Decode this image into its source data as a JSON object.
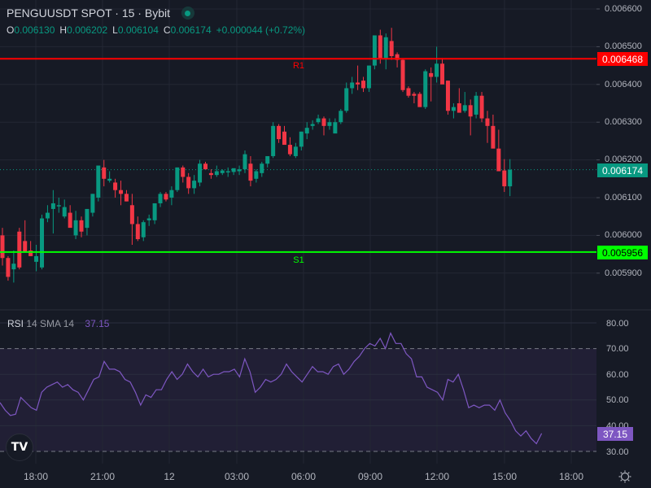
{
  "header": {
    "title": "PENGUUSDT SPOT · 15 · Bybit",
    "ohlc": {
      "o_label": "O",
      "o": "0.006130",
      "h_label": "H",
      "h": "0.006202",
      "l_label": "L",
      "l": "0.006104",
      "c_label": "C",
      "c": "0.006174",
      "change": "+0.000044 (+0.72%)"
    }
  },
  "price_axis": {
    "ticks": [
      "0.006600",
      "0.006500",
      "0.006400",
      "0.006300",
      "0.006200",
      "0.006100",
      "0.006000",
      "0.005900"
    ],
    "r1_tag": "0.006468",
    "last_tag": "0.006174",
    "s1_tag": "0.005956"
  },
  "levels": {
    "r1_label": "R1",
    "s1_label": "S1"
  },
  "rsi": {
    "name": "RSI",
    "params": "14 SMA 14",
    "value": "37.15",
    "ticks": [
      "80.00",
      "70.00",
      "60.00",
      "50.00",
      "40.00",
      "30.00"
    ],
    "tag": "37.15"
  },
  "time_axis": {
    "ticks": [
      "18:00",
      "21:00",
      "12",
      "03:00",
      "06:00",
      "09:00",
      "12:00",
      "15:00",
      "18:00"
    ]
  },
  "colors": {
    "up": "#089981",
    "down": "#f23645",
    "r1": "#ff0000",
    "s1": "#00ff00",
    "rsi": "#7e57c2",
    "background": "#161a25"
  },
  "chart_data": {
    "type": "candlestick",
    "title": "PENGUUSDT SPOT · 15 · Bybit",
    "interval": "15",
    "ylim": [
      0.00585,
      0.00662
    ],
    "levels": {
      "R1": 0.006468,
      "S1": 0.005956,
      "last": 0.006174
    },
    "x_ticks": [
      "18:00",
      "21:00",
      "12",
      "03:00",
      "06:00",
      "09:00",
      "12:00",
      "15:00",
      "18:00"
    ],
    "candles": [
      [
        0.006,
        0.00602,
        0.00592,
        0.00594
      ],
      [
        0.00594,
        0.005945,
        0.00588,
        0.00589
      ],
      [
        0.00591,
        0.00596,
        0.005875,
        0.005925
      ],
      [
        0.00601,
        0.00602,
        0.00591,
        0.005915
      ],
      [
        0.005985,
        0.00604,
        0.00596,
        0.005955
      ],
      [
        0.00596,
        0.005985,
        0.005945,
        0.005945
      ],
      [
        0.00593,
        0.005975,
        0.005905,
        0.005945
      ],
      [
        0.005915,
        0.006055,
        0.00591,
        0.006045
      ],
      [
        0.006045,
        0.00608,
        0.006035,
        0.00606
      ],
      [
        0.00607,
        0.00612,
        0.006005,
        0.006085
      ],
      [
        0.00608,
        0.0061,
        0.00606,
        0.00608
      ],
      [
        0.00605,
        0.006095,
        0.006045,
        0.006075
      ],
      [
        0.00606,
        0.00608,
        0.00604,
        0.00602
      ],
      [
        0.006,
        0.006065,
        0.00599,
        0.00604
      ],
      [
        0.00604,
        0.00605,
        0.005995,
        0.00601
      ],
      [
        0.00602,
        0.00606,
        0.006,
        0.00607
      ],
      [
        0.00606,
        0.00611,
        0.00605,
        0.00611
      ],
      [
        0.0061,
        0.00618,
        0.00609,
        0.006185
      ],
      [
        0.00618,
        0.0062,
        0.00613,
        0.00615
      ],
      [
        0.006145,
        0.00617,
        0.00614,
        0.00615
      ],
      [
        0.00614,
        0.00615,
        0.0061,
        0.00612
      ],
      [
        0.00612,
        0.006145,
        0.00608,
        0.00611
      ],
      [
        0.00611,
        0.00612,
        0.00609,
        0.00609
      ],
      [
        0.00608,
        0.00611,
        0.005975,
        0.00603
      ],
      [
        0.00603,
        0.00605,
        0.005985,
        0.00599
      ],
      [
        0.005995,
        0.00604,
        0.005985,
        0.006035
      ],
      [
        0.00604,
        0.006055,
        0.006025,
        0.006045
      ],
      [
        0.00604,
        0.006085,
        0.00603,
        0.006085
      ],
      [
        0.006085,
        0.006115,
        0.006075,
        0.00611
      ],
      [
        0.00611,
        0.006115,
        0.00609,
        0.006095
      ],
      [
        0.0061,
        0.00613,
        0.00608,
        0.00612
      ],
      [
        0.00612,
        0.00618,
        0.006115,
        0.00618
      ],
      [
        0.00618,
        0.006185,
        0.00614,
        0.006155
      ],
      [
        0.006155,
        0.006165,
        0.00611,
        0.006125
      ],
      [
        0.006125,
        0.00616,
        0.00611,
        0.006145
      ],
      [
        0.00614,
        0.0062,
        0.00613,
        0.00619
      ],
      [
        0.00619,
        0.006195,
        0.00618,
        0.006175
      ],
      [
        0.006165,
        0.006175,
        0.00615,
        0.00616
      ],
      [
        0.00616,
        0.006185,
        0.006155,
        0.00617
      ],
      [
        0.006165,
        0.006175,
        0.00616,
        0.006172
      ],
      [
        0.006168,
        0.00618,
        0.006155,
        0.00617
      ],
      [
        0.006168,
        0.006175,
        0.00616,
        0.006178
      ],
      [
        0.00617,
        0.006185,
        0.00616,
        0.006175
      ],
      [
        0.006175,
        0.006225,
        0.006165,
        0.006215
      ],
      [
        0.00619,
        0.00621,
        0.00613,
        0.006145
      ],
      [
        0.00615,
        0.006175,
        0.00614,
        0.00617
      ],
      [
        0.006165,
        0.006195,
        0.006155,
        0.00619
      ],
      [
        0.00619,
        0.006205,
        0.00618,
        0.00621
      ],
      [
        0.00621,
        0.0063,
        0.006205,
        0.00629
      ],
      [
        0.00629,
        0.006295,
        0.006245,
        0.006255
      ],
      [
        0.006275,
        0.00629,
        0.00625,
        0.00624
      ],
      [
        0.00624,
        0.00626,
        0.00621,
        0.006215
      ],
      [
        0.00621,
        0.006245,
        0.006205,
        0.006235
      ],
      [
        0.006235,
        0.006275,
        0.006225,
        0.006275
      ],
      [
        0.00627,
        0.0063,
        0.006255,
        0.006285
      ],
      [
        0.00629,
        0.006305,
        0.00628,
        0.006295
      ],
      [
        0.0063,
        0.00632,
        0.006295,
        0.00631
      ],
      [
        0.00631,
        0.006315,
        0.006265,
        0.00629
      ],
      [
        0.00629,
        0.00631,
        0.00628,
        0.0063
      ],
      [
        0.00627,
        0.00631,
        0.006275,
        0.0063
      ],
      [
        0.0063,
        0.006335,
        0.006295,
        0.00633
      ],
      [
        0.00633,
        0.006405,
        0.006325,
        0.00639
      ],
      [
        0.00639,
        0.00642,
        0.006375,
        0.006405
      ],
      [
        0.006405,
        0.00645,
        0.006385,
        0.0064
      ],
      [
        0.00641,
        0.00642,
        0.00638,
        0.00639
      ],
      [
        0.00639,
        0.00645,
        0.00638,
        0.00645
      ],
      [
        0.00645,
        0.006525,
        0.00644,
        0.00653
      ],
      [
        0.00653,
        0.006545,
        0.006455,
        0.00647
      ],
      [
        0.00647,
        0.006535,
        0.00644,
        0.006525
      ],
      [
        0.006515,
        0.00655,
        0.006465,
        0.006475
      ],
      [
        0.00648,
        0.006485,
        0.006445,
        0.006465
      ],
      [
        0.006465,
        0.00647,
        0.00638,
        0.006385
      ],
      [
        0.00639,
        0.006395,
        0.006365,
        0.00637
      ],
      [
        0.006375,
        0.00638,
        0.00635,
        0.00637
      ],
      [
        0.006375,
        0.00638,
        0.00635,
        0.00634
      ],
      [
        0.00634,
        0.00644,
        0.006335,
        0.006435
      ],
      [
        0.00643,
        0.006445,
        0.006355,
        0.00642
      ],
      [
        0.00642,
        0.0065,
        0.006405,
        0.006455
      ],
      [
        0.006455,
        0.00647,
        0.006405,
        0.0064
      ],
      [
        0.00641,
        0.00641,
        0.00632,
        0.00633
      ],
      [
        0.00633,
        0.00635,
        0.00631,
        0.00634
      ],
      [
        0.00635,
        0.00639,
        0.00633,
        0.006325
      ],
      [
        0.00633,
        0.00638,
        0.006325,
        0.006345
      ],
      [
        0.006345,
        0.00636,
        0.006265,
        0.006315
      ],
      [
        0.00632,
        0.00638,
        0.00631,
        0.00637
      ],
      [
        0.00637,
        0.00638,
        0.0063,
        0.00631
      ],
      [
        0.00631,
        0.00633,
        0.006245,
        0.00629
      ],
      [
        0.00629,
        0.00632,
        0.006235,
        0.00623
      ],
      [
        0.00623,
        0.00628,
        0.00617,
        0.00617
      ],
      [
        0.006172,
        0.006202,
        0.006115,
        0.00613
      ],
      [
        0.00613,
        0.006202,
        0.006104,
        0.006174
      ]
    ],
    "rsi": {
      "name": "RSI 14 SMA 14",
      "ylim": [
        27,
        82
      ],
      "bands": [
        30,
        70
      ],
      "last": 37.15,
      "x_start": 0,
      "x_step": 6.9,
      "values": [
        49,
        46,
        44,
        44.5,
        51,
        49,
        47,
        46,
        53,
        55,
        56,
        57,
        55,
        56,
        54,
        53,
        50,
        54,
        58,
        59,
        65,
        62,
        62,
        61,
        58,
        57,
        53,
        48,
        52,
        51,
        54,
        54,
        58,
        61,
        58,
        60,
        64,
        61,
        59,
        62,
        59,
        60,
        60,
        61,
        61,
        62,
        59,
        66,
        61,
        53,
        55,
        58,
        57,
        58,
        60,
        64,
        61,
        59,
        57,
        60,
        63,
        61,
        61,
        60,
        63,
        64,
        60,
        62,
        65,
        67,
        70,
        72,
        71,
        74,
        70,
        76,
        72,
        72,
        68,
        66,
        59,
        59,
        55,
        54,
        53,
        50,
        58,
        57,
        60,
        54,
        47,
        48,
        47,
        48,
        48,
        46,
        50,
        45,
        42,
        38,
        36,
        38,
        35,
        33,
        37
      ]
    }
  }
}
